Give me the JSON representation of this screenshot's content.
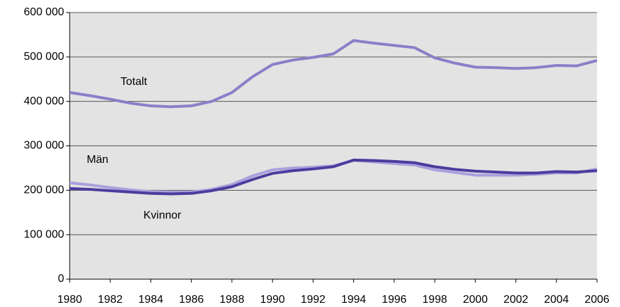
{
  "chart_data": {
    "type": "line",
    "x": [
      1980,
      1981,
      1982,
      1983,
      1984,
      1985,
      1986,
      1987,
      1988,
      1989,
      1990,
      1991,
      1992,
      1993,
      1994,
      1995,
      1996,
      1997,
      1998,
      1999,
      2000,
      2001,
      2002,
      2003,
      2004,
      2005,
      2006
    ],
    "series": [
      {
        "name": "Totalt",
        "color": "#8a7fc8",
        "values": [
          420000,
          413000,
          405000,
          396000,
          390000,
          388000,
          390000,
          400000,
          420000,
          455000,
          483000,
          493000,
          499000,
          507000,
          537000,
          531000,
          526000,
          521000,
          498000,
          486000,
          477000,
          476000,
          474000,
          476000,
          481000,
          480000,
          492000
        ]
      },
      {
        "name": "Män",
        "color": "#a9a0dc",
        "values": [
          217000,
          212000,
          206000,
          201000,
          197000,
          196000,
          196000,
          202000,
          213000,
          232000,
          246000,
          250000,
          252000,
          255000,
          267000,
          264000,
          260000,
          257000,
          246000,
          240000,
          234000,
          234000,
          234000,
          236000,
          239000,
          239000,
          248000
        ]
      },
      {
        "name": "Kvinnor",
        "color": "#4e3b9e",
        "values": [
          204000,
          202000,
          199000,
          196000,
          193000,
          192000,
          193000,
          199000,
          208000,
          224000,
          238000,
          244000,
          248000,
          253000,
          268000,
          267000,
          265000,
          262000,
          253000,
          247000,
          243000,
          241000,
          239000,
          239000,
          242000,
          241000,
          244000
        ]
      }
    ],
    "xlim": [
      1980,
      2006
    ],
    "xticks": [
      1980,
      1982,
      1984,
      1986,
      1988,
      1990,
      1992,
      1994,
      1996,
      1998,
      2000,
      2002,
      2004,
      2006
    ],
    "ylim": [
      0,
      600000
    ],
    "yticks": [
      0,
      {
        "value": 100000,
        "label": "100 000"
      },
      {
        "value": 200000,
        "label": "200 000"
      },
      {
        "value": 300000,
        "label": "300 000"
      },
      {
        "value": 400000,
        "label": "400 000"
      },
      {
        "value": 500000,
        "label": "500 000"
      },
      {
        "value": 600000,
        "label": "600 000"
      }
    ],
    "grid": true
  }
}
